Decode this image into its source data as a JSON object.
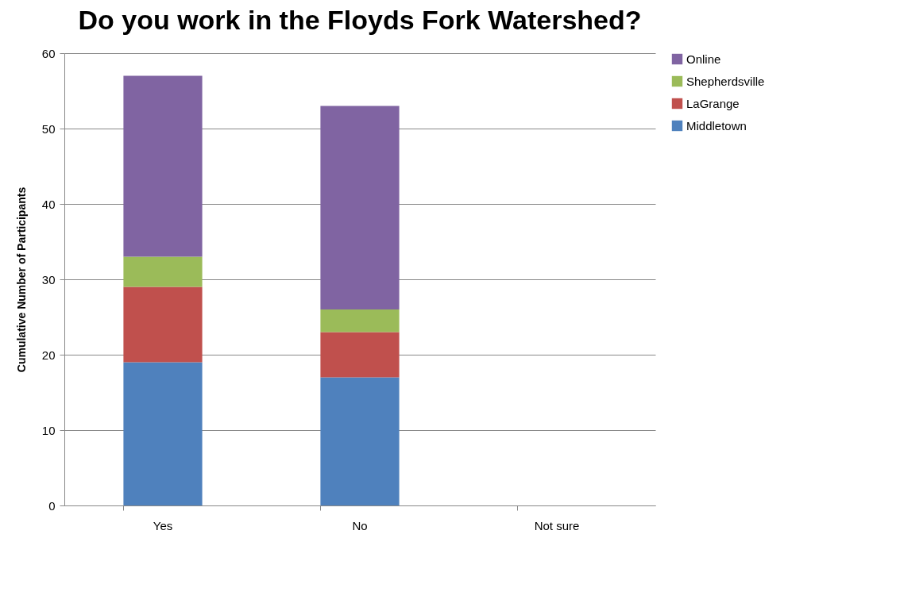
{
  "chart_data": {
    "type": "bar",
    "title": "Do you work in the Floyds Fork Watershed?",
    "ylabel": "Cumulative Number of Participants",
    "categories": [
      "Yes",
      "No",
      "Not sure"
    ],
    "stacked": true,
    "series": [
      {
        "name": "Middletown",
        "color": "#4f81bd",
        "values": [
          19,
          17,
          0
        ]
      },
      {
        "name": "LaGrange",
        "color": "#c0504d",
        "values": [
          10,
          6,
          0
        ]
      },
      {
        "name": "Shepherdsville",
        "color": "#9bbb59",
        "values": [
          4,
          3,
          0
        ]
      },
      {
        "name": "Online",
        "color": "#8064a2",
        "values": [
          24,
          27,
          0
        ]
      }
    ],
    "ylim": [
      0,
      60
    ],
    "yticks": [
      0,
      10,
      20,
      30,
      40,
      50,
      60
    ],
    "grid": "y",
    "legend": "right"
  }
}
